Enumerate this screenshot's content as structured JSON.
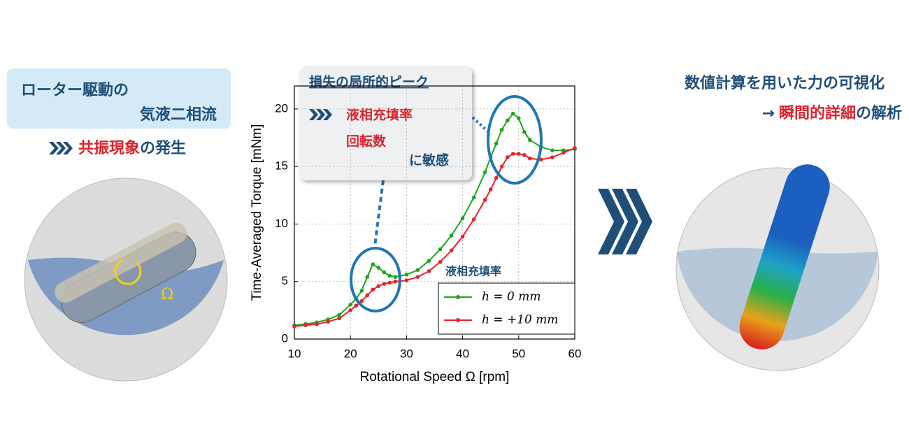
{
  "left": {
    "line1": "ローター駆動の",
    "line2": "気液二相流",
    "highlight": "共振現象",
    "rest": "の発生",
    "omega": "Ω"
  },
  "callout": {
    "title": "損失の局所的ピーク",
    "item1": "液相充填率",
    "item2": "回転数",
    "item3": "に敏感"
  },
  "right": {
    "line1": "数値計算を用いた力の可視化",
    "arrow": "→",
    "highlight": "瞬間的詳細",
    "rest": "の解析"
  },
  "chart_data": {
    "type": "line",
    "xlabel": "Rotational Speed Ω [rpm]",
    "ylabel": "Time-Averaged Torque [mNm]",
    "x": [
      10,
      12,
      14,
      16,
      18,
      20,
      21,
      22,
      23,
      24,
      25,
      26,
      27,
      28,
      30,
      32,
      34,
      36,
      38,
      40,
      42,
      44,
      45,
      46,
      47,
      48,
      49,
      50,
      51,
      52,
      54,
      56,
      58,
      60
    ],
    "series": [
      {
        "name": "h = 0 mm",
        "color": "#1ea51e",
        "values": [
          1.2,
          1.3,
          1.45,
          1.7,
          2.1,
          3.0,
          3.5,
          4.2,
          5.4,
          6.5,
          6.2,
          5.8,
          5.5,
          5.4,
          5.6,
          6.0,
          6.8,
          7.8,
          9.0,
          10.5,
          12.3,
          14.5,
          15.8,
          17.0,
          18.2,
          19.0,
          19.6,
          19.2,
          18.0,
          17.3,
          16.7,
          16.4,
          16.4,
          16.5
        ]
      },
      {
        "name": "h = +10 mm",
        "color": "#e8222c",
        "values": [
          1.1,
          1.2,
          1.3,
          1.5,
          1.8,
          2.5,
          2.9,
          3.3,
          3.8,
          4.3,
          4.6,
          4.8,
          4.9,
          5.0,
          5.1,
          5.4,
          5.9,
          6.7,
          7.7,
          8.9,
          10.4,
          12.1,
          13.0,
          14.0,
          15.0,
          15.8,
          16.1,
          16.1,
          16.0,
          15.7,
          15.6,
          15.8,
          16.2,
          16.6
        ]
      }
    ],
    "legend_title": "液相充填率",
    "legend": "lower right",
    "xlim": [
      10,
      60
    ],
    "xticks": [
      10,
      20,
      30,
      40,
      50,
      60
    ],
    "ylim": [
      0,
      22
    ],
    "yticks": [
      0,
      5,
      10,
      15,
      20
    ],
    "grid": true
  }
}
